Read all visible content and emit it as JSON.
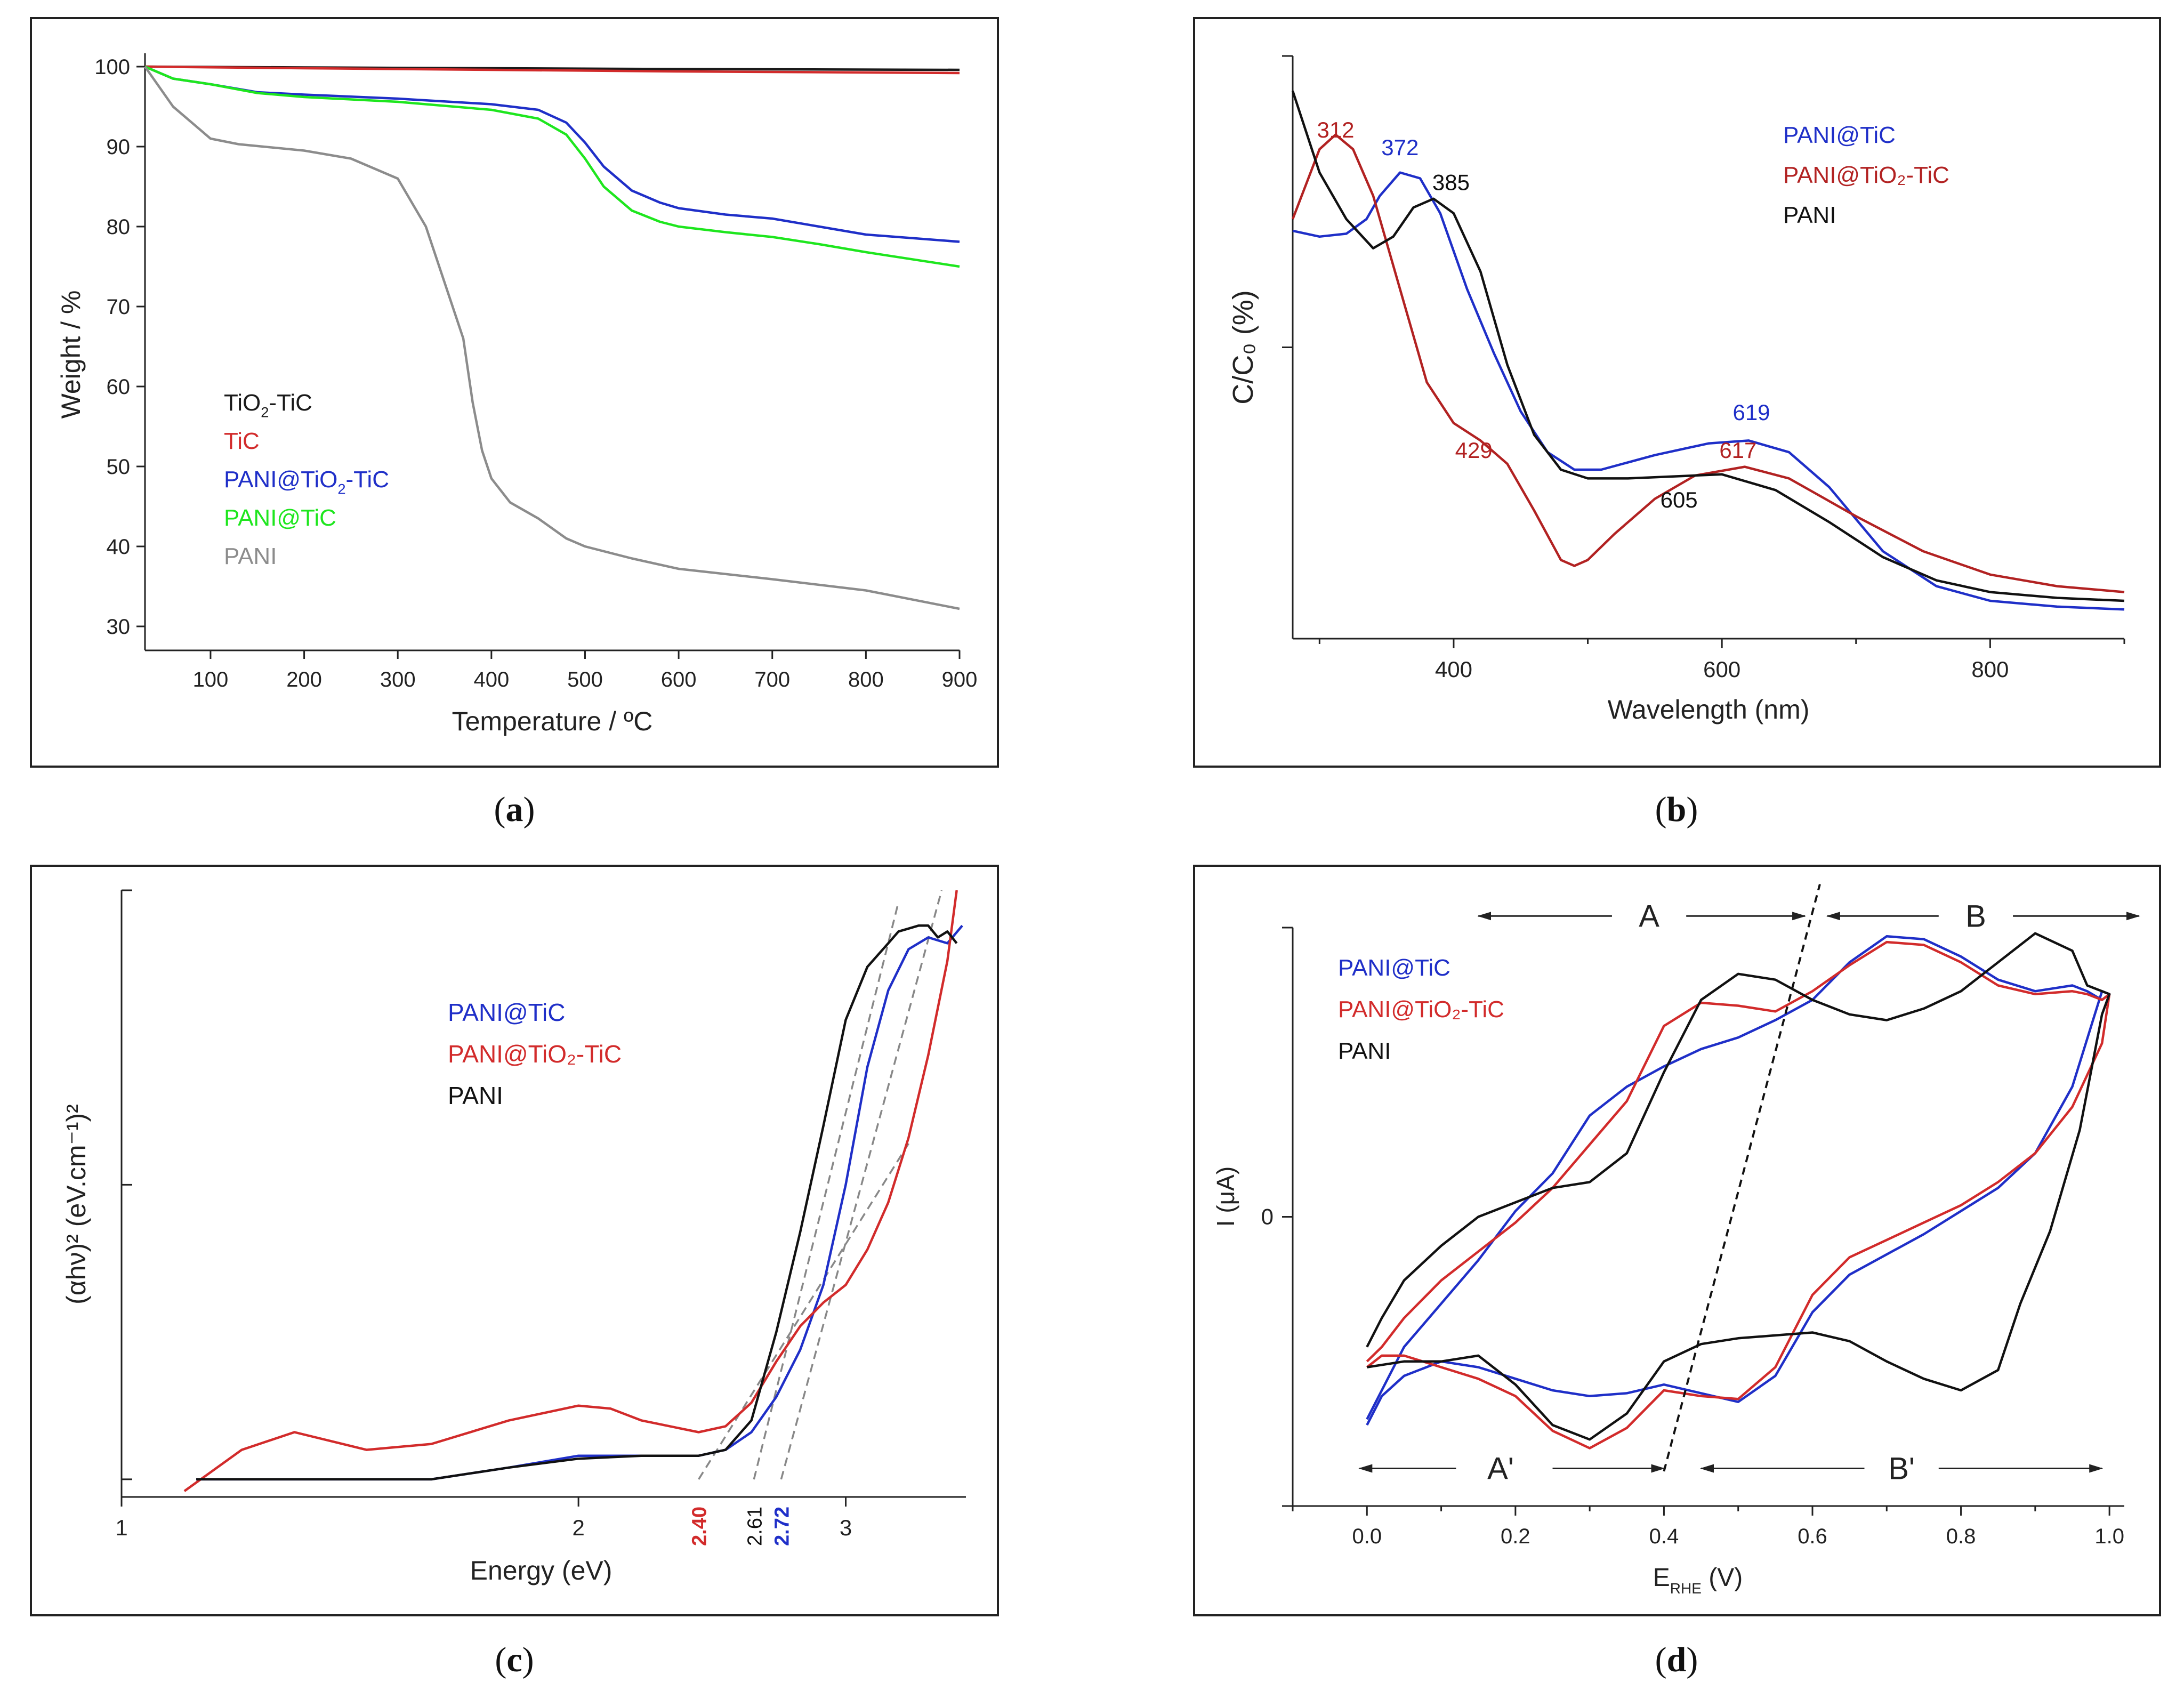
{
  "chart_data": [
    {
      "id": "a",
      "caption": "a",
      "type": "line",
      "xlabel_main": "Temperature / ",
      "xlabel_unit": "ºC",
      "ylabel": "Weight  / %",
      "xlim": [
        30,
        900
      ],
      "ylim": [
        27,
        101
      ],
      "xticks": [
        100,
        200,
        300,
        400,
        500,
        600,
        700,
        800,
        900
      ],
      "yticks": [
        30,
        40,
        50,
        60,
        70,
        80,
        90,
        100
      ],
      "legend": [
        {
          "pre": "TiO",
          "sub": "2",
          "post": "-TiC",
          "color": "#1a1a1a"
        },
        {
          "pre": "TiC",
          "sub": "",
          "post": "",
          "color": "#d22b2b"
        },
        {
          "pre": "PANI@TiO",
          "sub": "2",
          "post": "-TiC",
          "color": "#1f2fc8"
        },
        {
          "pre": "PANI@TiC",
          "sub": "",
          "post": "",
          "color": "#1ee61e"
        },
        {
          "pre": "PANI",
          "sub": "",
          "post": "",
          "color": "#8c8c8c"
        }
      ],
      "series": [
        {
          "name": "TiO2-TiC",
          "color": "#1a1a1a",
          "x": [
            30,
            200,
            400,
            600,
            900
          ],
          "y": [
            100,
            99.9,
            99.8,
            99.7,
            99.6
          ]
        },
        {
          "name": "TiC",
          "color": "#d22b2b",
          "x": [
            30,
            200,
            400,
            600,
            900
          ],
          "y": [
            100,
            99.8,
            99.6,
            99.4,
            99.2
          ]
        },
        {
          "name": "PANI@TiO2-TiC",
          "color": "#1f2fc8",
          "x": [
            30,
            60,
            100,
            150,
            200,
            300,
            400,
            450,
            480,
            500,
            520,
            550,
            580,
            600,
            650,
            700,
            750,
            800,
            900
          ],
          "y": [
            100,
            98.5,
            97.8,
            96.8,
            96.5,
            96.0,
            95.3,
            94.6,
            93.0,
            90.5,
            87.5,
            84.5,
            83.0,
            82.3,
            81.5,
            81.0,
            80.0,
            79.0,
            78.1
          ]
        },
        {
          "name": "PANI@TiC",
          "color": "#1ee61e",
          "x": [
            30,
            60,
            100,
            150,
            200,
            300,
            400,
            450,
            480,
            500,
            520,
            550,
            580,
            600,
            650,
            700,
            750,
            800,
            900
          ],
          "y": [
            100,
            98.5,
            97.8,
            96.7,
            96.2,
            95.6,
            94.6,
            93.5,
            91.5,
            88.5,
            85.0,
            82.0,
            80.6,
            80.0,
            79.3,
            78.7,
            77.8,
            76.8,
            75.0
          ]
        },
        {
          "name": "PANI",
          "color": "#8c8c8c",
          "x": [
            30,
            60,
            100,
            130,
            200,
            250,
            300,
            330,
            350,
            370,
            380,
            390,
            400,
            420,
            450,
            480,
            500,
            550,
            600,
            700,
            800,
            900
          ],
          "y": [
            100,
            95,
            91,
            90.3,
            89.5,
            88.5,
            86,
            80,
            73,
            66,
            58,
            52,
            48.5,
            45.5,
            43.5,
            41,
            40,
            38.5,
            37.2,
            35.9,
            34.5,
            32.2
          ]
        }
      ]
    },
    {
      "id": "b",
      "caption": "b",
      "type": "line",
      "xlabel": "Wavelength (nm)",
      "ylabel": "C/C₀ (%)",
      "xlim": [
        280,
        900
      ],
      "ylim": [
        0,
        100
      ],
      "xticks": [
        400,
        600,
        800
      ],
      "legend": [
        {
          "pre": "PANI@TiC",
          "sub": "",
          "post": "",
          "color": "#1f2fc8"
        },
        {
          "pre": "PANI@TiO₂-TiC",
          "sub": "",
          "post": "",
          "color": "#b22222"
        },
        {
          "pre": "PANI",
          "sub": "",
          "post": "",
          "color": "#111111"
        }
      ],
      "annotations": [
        {
          "text": "312",
          "x": 312,
          "y": 86,
          "color": "#b22222"
        },
        {
          "text": "372",
          "x": 360,
          "y": 83,
          "color": "#1f2fc8"
        },
        {
          "text": "385",
          "x": 398,
          "y": 77,
          "color": "#111111"
        },
        {
          "text": "429",
          "x": 415,
          "y": 31,
          "color": "#b22222"
        },
        {
          "text": "619",
          "x": 622,
          "y": 37.5,
          "color": "#1f2fc8"
        },
        {
          "text": "617",
          "x": 612,
          "y": 31,
          "color": "#b22222"
        },
        {
          "text": "605",
          "x": 568,
          "y": 22.5,
          "color": "#111111"
        }
      ],
      "series": [
        {
          "name": "PANI@TiC",
          "color": "#1f2fc8",
          "x": [
            280,
            300,
            320,
            335,
            345,
            360,
            375,
            390,
            410,
            430,
            450,
            470,
            490,
            510,
            550,
            590,
            620,
            650,
            680,
            720,
            760,
            800,
            850,
            900
          ],
          "y": [
            70,
            69,
            69.5,
            72,
            76,
            80,
            79,
            73,
            60,
            49,
            39,
            32,
            29,
            29,
            31.5,
            33.5,
            34,
            32,
            26,
            15,
            9,
            6.5,
            5.5,
            5
          ]
        },
        {
          "name": "PANI@TiO2-TiC",
          "color": "#b22222",
          "x": [
            280,
            290,
            300,
            312,
            325,
            340,
            360,
            380,
            400,
            420,
            440,
            460,
            480,
            490,
            500,
            520,
            550,
            580,
            617,
            650,
            700,
            750,
            800,
            850,
            900
          ],
          "y": [
            72,
            78,
            84,
            86.5,
            84,
            76,
            60,
            44,
            37,
            34,
            30,
            22,
            13.5,
            12.5,
            13.5,
            18,
            24,
            28,
            29.5,
            27.5,
            21,
            15,
            11,
            9,
            8
          ]
        },
        {
          "name": "PANI",
          "color": "#111111",
          "x": [
            280,
            300,
            320,
            340,
            355,
            370,
            385,
            400,
            420,
            440,
            460,
            480,
            500,
            530,
            560,
            600,
            640,
            680,
            720,
            760,
            800,
            850,
            900
          ],
          "y": [
            94,
            80,
            72,
            67,
            69,
            74,
            75.5,
            73,
            63,
            47,
            35,
            29,
            27.5,
            27.5,
            27.8,
            28.2,
            25.5,
            20,
            14,
            10,
            8,
            7,
            6.5
          ]
        }
      ]
    },
    {
      "id": "c",
      "caption": "c",
      "type": "line",
      "xlabel": "Energy (eV)",
      "ylabel_html": "(αhν)² (eV.cm⁻¹)²",
      "xscale": "log",
      "xlim": [
        1,
        3.6
      ],
      "ylim": [
        -3,
        100
      ],
      "xticks": [
        1,
        2,
        3
      ],
      "legend": [
        {
          "pre": "PANI@TiC",
          "sub": "",
          "post": "",
          "color": "#1f2fc8"
        },
        {
          "pre": "PANI@TiO₂-TiC",
          "sub": "",
          "post": "",
          "color": "#d22b2b"
        },
        {
          "pre": "PANI",
          "sub": "",
          "post": "",
          "color": "#111111"
        }
      ],
      "gap_labels": [
        {
          "text": "2.40",
          "x": 2.4,
          "color": "#d22b2b"
        },
        {
          "text": "2.61",
          "x": 2.61,
          "color": "#111111"
        },
        {
          "text": "2.72",
          "x": 2.72,
          "color": "#1f2fc8"
        }
      ],
      "tangents": [
        {
          "x": [
            2.4,
            3.3
          ],
          "y": [
            0,
            57
          ],
          "color": "#888888"
        },
        {
          "x": [
            2.61,
            3.25
          ],
          "y": [
            0,
            98
          ],
          "color": "#888888"
        },
        {
          "x": [
            2.72,
            3.47
          ],
          "y": [
            0,
            100
          ],
          "color": "#888888"
        }
      ],
      "series": [
        {
          "name": "PANI@TiC",
          "color": "#1f2fc8",
          "x": [
            1.12,
            1.6,
            1.8,
            2.0,
            2.2,
            2.4,
            2.5,
            2.6,
            2.7,
            2.8,
            2.9,
            3.0,
            3.1,
            3.2,
            3.3,
            3.4,
            3.5,
            3.58
          ],
          "y": [
            0,
            0,
            2,
            4,
            4,
            4,
            5,
            8,
            14,
            22,
            33,
            50,
            70,
            83,
            90,
            92,
            91,
            94
          ]
        },
        {
          "name": "PANI@TiO2-TiC",
          "color": "#d22b2b",
          "x": [
            1.1,
            1.2,
            1.3,
            1.45,
            1.6,
            1.8,
            2.0,
            2.1,
            2.2,
            2.4,
            2.5,
            2.6,
            2.7,
            2.8,
            2.9,
            3.0,
            3.1,
            3.2,
            3.3,
            3.4,
            3.5,
            3.55
          ],
          "y": [
            -2,
            5,
            8,
            5,
            6,
            10,
            12.5,
            12,
            10,
            8,
            9,
            13,
            20,
            26,
            30,
            33,
            39,
            47,
            58,
            72,
            88,
            100
          ]
        },
        {
          "name": "PANI",
          "color": "#111111",
          "x": [
            1.12,
            1.6,
            1.8,
            2.0,
            2.2,
            2.4,
            2.5,
            2.6,
            2.7,
            2.8,
            2.9,
            3.0,
            3.1,
            3.2,
            3.25,
            3.3,
            3.35,
            3.4,
            3.45,
            3.5,
            3.55
          ],
          "y": [
            0,
            0,
            2,
            3.5,
            4,
            4,
            5,
            10,
            25,
            42,
            60,
            78,
            87,
            91,
            93,
            93.5,
            94,
            94,
            92,
            93,
            91
          ]
        }
      ]
    },
    {
      "id": "d",
      "caption": "d",
      "type": "line",
      "xlabel_main": "E",
      "xlabel_sub": "RHE",
      "xlabel_unit": " (V)",
      "ylabel": "I (μA)",
      "xlim": [
        -0.1,
        1.02
      ],
      "ylim": [
        -100,
        100
      ],
      "xticks": [
        0.0,
        0.2,
        0.4,
        0.6,
        0.8,
        1.0
      ],
      "ytick_label": "0",
      "legend": [
        {
          "pre": "PANI@TiC",
          "sub": "",
          "post": "",
          "color": "#1f2fc8"
        },
        {
          "pre": "PANI@TiO₂-TiC",
          "sub": "",
          "post": "",
          "color": "#d22b2b"
        },
        {
          "pre": "PANI",
          "sub": "",
          "post": "",
          "color": "#111111"
        }
      ],
      "region_labels": [
        {
          "text": "A",
          "x": 0.38,
          "y": 104
        },
        {
          "text": "B",
          "x": 0.82,
          "y": 104
        },
        {
          "text": "A'",
          "x": 0.18,
          "y": -87
        },
        {
          "text": "B'",
          "x": 0.72,
          "y": -87
        }
      ],
      "arrows": [
        {
          "x1": 0.33,
          "x2": 0.15,
          "y": 104
        },
        {
          "x1": 0.43,
          "x2": 0.59,
          "y": 104
        },
        {
          "x1": 0.77,
          "x2": 0.62,
          "y": 104
        },
        {
          "x1": 0.87,
          "x2": 1.04,
          "y": 104
        },
        {
          "x1": 0.12,
          "x2": -0.01,
          "y": -87
        },
        {
          "x1": 0.25,
          "x2": 0.4,
          "y": -87
        },
        {
          "x1": 0.67,
          "x2": 0.45,
          "y": -87
        },
        {
          "x1": 0.77,
          "x2": 0.99,
          "y": -87
        }
      ],
      "divider": {
        "x": [
          0.4,
          0.61
        ],
        "y": [
          -88,
          115
        ]
      },
      "series": [
        {
          "name": "PANI@TiC",
          "color": "#1f2fc8",
          "x": [
            0.0,
            0.02,
            0.05,
            0.1,
            0.15,
            0.2,
            0.25,
            0.3,
            0.35,
            0.4,
            0.45,
            0.5,
            0.55,
            0.6,
            0.65,
            0.7,
            0.75,
            0.8,
            0.85,
            0.9,
            0.95,
            0.99,
            1.0,
            0.99,
            0.97,
            0.95,
            0.9,
            0.85,
            0.8,
            0.75,
            0.7,
            0.65,
            0.6,
            0.55,
            0.5,
            0.45,
            0.4,
            0.35,
            0.3,
            0.25,
            0.2,
            0.15,
            0.1,
            0.05,
            0.02,
            0.0
          ],
          "y": [
            -72,
            -62,
            -55,
            -50,
            -52,
            -56,
            -60,
            -62,
            -61,
            -58,
            -61,
            -64,
            -55,
            -33,
            -20,
            -13,
            -6,
            2,
            10,
            22,
            45,
            78,
            77,
            75,
            78,
            80,
            78,
            82,
            90,
            96,
            97,
            88,
            75,
            68,
            62,
            58,
            52,
            45,
            35,
            15,
            2,
            -15,
            -30,
            -45,
            -60,
            -70
          ]
        },
        {
          "name": "PANI@TiO2-TiC",
          "color": "#d22b2b",
          "x": [
            0.0,
            0.02,
            0.05,
            0.1,
            0.15,
            0.2,
            0.25,
            0.3,
            0.35,
            0.4,
            0.45,
            0.5,
            0.55,
            0.6,
            0.65,
            0.7,
            0.75,
            0.8,
            0.85,
            0.9,
            0.95,
            0.99,
            1.0,
            0.99,
            0.97,
            0.95,
            0.9,
            0.85,
            0.8,
            0.75,
            0.7,
            0.65,
            0.6,
            0.55,
            0.5,
            0.45,
            0.4,
            0.35,
            0.3,
            0.25,
            0.2,
            0.15,
            0.1,
            0.05,
            0.02,
            0.0
          ],
          "y": [
            -52,
            -48,
            -48,
            -52,
            -56,
            -62,
            -74,
            -80,
            -73,
            -60,
            -62,
            -63,
            -52,
            -27,
            -14,
            -8,
            -2,
            4,
            12,
            22,
            38,
            60,
            77,
            75,
            77,
            78,
            77,
            80,
            88,
            94,
            95,
            87,
            78,
            71,
            73,
            74,
            66,
            40,
            25,
            10,
            -2,
            -12,
            -22,
            -35,
            -45,
            -50
          ]
        },
        {
          "name": "PANI",
          "color": "#111111",
          "x": [
            0.0,
            0.05,
            0.1,
            0.15,
            0.2,
            0.25,
            0.3,
            0.35,
            0.4,
            0.45,
            0.5,
            0.55,
            0.6,
            0.65,
            0.7,
            0.75,
            0.8,
            0.85,
            0.88,
            0.92,
            0.96,
            0.99,
            1.0,
            0.99,
            0.97,
            0.95,
            0.9,
            0.85,
            0.8,
            0.75,
            0.7,
            0.65,
            0.6,
            0.55,
            0.5,
            0.45,
            0.4,
            0.35,
            0.3,
            0.25,
            0.2,
            0.15,
            0.1,
            0.05,
            0.02,
            0.0
          ],
          "y": [
            -52,
            -50,
            -50,
            -48,
            -58,
            -72,
            -77,
            -68,
            -50,
            -44,
            -42,
            -41,
            -40,
            -43,
            -50,
            -56,
            -60,
            -53,
            -30,
            -5,
            30,
            70,
            77,
            78,
            80,
            92,
            98,
            88,
            78,
            72,
            68,
            70,
            75,
            82,
            84,
            75,
            50,
            22,
            12,
            10,
            5,
            0,
            -10,
            -22,
            -35,
            -45
          ]
        }
      ]
    }
  ]
}
